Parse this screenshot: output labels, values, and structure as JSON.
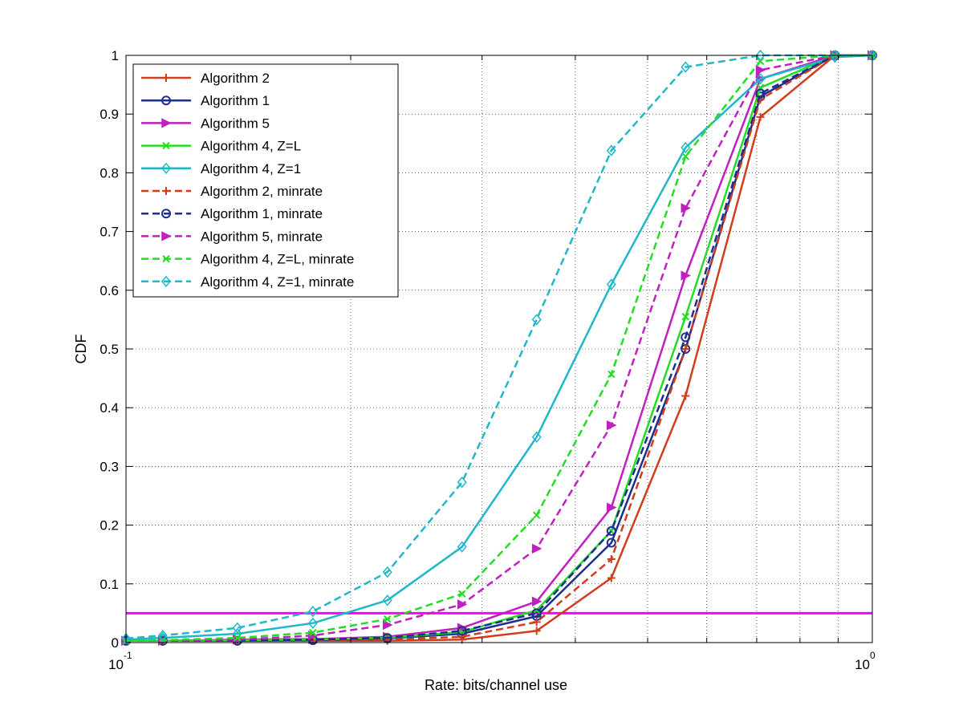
{
  "chart_data": {
    "type": "line",
    "title": "",
    "xlabel": "Rate: bits/channel use",
    "ylabel": "CDF",
    "xscale": "log",
    "xlim": [
      0.1,
      1.0
    ],
    "ylim": [
      0,
      1
    ],
    "grid": true,
    "legend_position": "top-left",
    "x_tick_labels": [
      {
        "base": "10",
        "exp": "-1",
        "value": 0.1
      },
      {
        "base": "10",
        "exp": "0",
        "value": 1.0
      }
    ],
    "y_ticks": [
      0,
      0.1,
      0.2,
      0.3,
      0.4,
      0.5,
      0.6,
      0.7,
      0.8,
      0.9,
      1
    ],
    "y_tick_labels": [
      "0",
      "0.1",
      "0.2",
      "0.3",
      "0.4",
      "0.5",
      "0.6",
      "0.7",
      "0.8",
      "0.9",
      "1"
    ],
    "x_minor_ticks": [
      0.2,
      0.3,
      0.4,
      0.5,
      0.6,
      0.7,
      0.8,
      0.9
    ],
    "reference_line": {
      "y": 0.05,
      "color": "#ff00ff"
    },
    "series": [
      {
        "name": "Algorithm 2",
        "color": "#d23c1a",
        "dash": false,
        "marker": "plus",
        "x": [
          0.1,
          0.112,
          0.141,
          0.178,
          0.224,
          0.282,
          0.355,
          0.447,
          0.562,
          0.708,
          0.891,
          1.0
        ],
        "y": [
          0.003,
          0.003,
          0.003,
          0.003,
          0.003,
          0.005,
          0.02,
          0.11,
          0.42,
          0.895,
          1.0,
          1.0
        ]
      },
      {
        "name": "Algorithm 1",
        "color": "#1c2f8c",
        "dash": false,
        "marker": "circle",
        "x": [
          0.1,
          0.112,
          0.141,
          0.178,
          0.224,
          0.282,
          0.355,
          0.447,
          0.562,
          0.708,
          0.891,
          1.0
        ],
        "y": [
          0.003,
          0.003,
          0.003,
          0.004,
          0.007,
          0.015,
          0.045,
          0.17,
          0.5,
          0.93,
          1.0,
          1.0
        ]
      },
      {
        "name": "Algorithm 5",
        "color": "#c020c0",
        "dash": false,
        "marker": "triangle-right",
        "x": [
          0.1,
          0.112,
          0.141,
          0.178,
          0.224,
          0.282,
          0.355,
          0.447,
          0.562,
          0.708,
          0.891,
          1.0
        ],
        "y": [
          0.003,
          0.003,
          0.005,
          0.006,
          0.01,
          0.025,
          0.07,
          0.23,
          0.625,
          0.96,
          1.0,
          1.0
        ]
      },
      {
        "name": "Algorithm 4, Z=L",
        "color": "#22dd22",
        "dash": false,
        "marker": "x",
        "x": [
          0.1,
          0.112,
          0.141,
          0.178,
          0.224,
          0.282,
          0.355,
          0.447,
          0.562,
          0.708,
          0.891,
          1.0
        ],
        "y": [
          0.003,
          0.003,
          0.004,
          0.005,
          0.008,
          0.018,
          0.055,
          0.19,
          0.555,
          0.945,
          1.0,
          1.0
        ]
      },
      {
        "name": "Algorithm 4, Z=1",
        "color": "#1eb8c8",
        "dash": false,
        "marker": "diamond",
        "x": [
          0.1,
          0.112,
          0.141,
          0.178,
          0.224,
          0.282,
          0.355,
          0.447,
          0.562,
          0.708,
          0.891,
          1.0
        ],
        "y": [
          0.005,
          0.008,
          0.015,
          0.033,
          0.072,
          0.163,
          0.35,
          0.61,
          0.843,
          0.96,
          0.997,
          1.0
        ]
      },
      {
        "name": "Algorithm 2, minrate",
        "color": "#d23c1a",
        "dash": true,
        "marker": "plus",
        "x": [
          0.1,
          0.112,
          0.141,
          0.178,
          0.224,
          0.282,
          0.355,
          0.447,
          0.562,
          0.708,
          0.891,
          1.0
        ],
        "y": [
          0.003,
          0.003,
          0.003,
          0.003,
          0.005,
          0.01,
          0.035,
          0.142,
          0.5,
          0.925,
          1.0,
          1.0
        ]
      },
      {
        "name": "Algorithm 1, minrate",
        "color": "#1c2f8c",
        "dash": true,
        "marker": "circle",
        "x": [
          0.1,
          0.112,
          0.141,
          0.178,
          0.224,
          0.282,
          0.355,
          0.447,
          0.562,
          0.708,
          0.891,
          1.0
        ],
        "y": [
          0.003,
          0.003,
          0.003,
          0.005,
          0.008,
          0.02,
          0.05,
          0.19,
          0.52,
          0.935,
          1.0,
          1.0
        ]
      },
      {
        "name": "Algorithm 5, minrate",
        "color": "#c020c0",
        "dash": true,
        "marker": "triangle-right",
        "x": [
          0.1,
          0.112,
          0.141,
          0.178,
          0.224,
          0.282,
          0.355,
          0.447,
          0.562,
          0.708,
          0.891,
          1.0
        ],
        "y": [
          0.003,
          0.003,
          0.005,
          0.012,
          0.03,
          0.065,
          0.16,
          0.37,
          0.74,
          0.975,
          1.0,
          1.0
        ]
      },
      {
        "name": "Algorithm 4, Z=L, minrate",
        "color": "#22dd22",
        "dash": true,
        "marker": "x",
        "x": [
          0.1,
          0.112,
          0.141,
          0.178,
          0.224,
          0.282,
          0.355,
          0.447,
          0.562,
          0.708,
          0.891,
          1.0
        ],
        "y": [
          0.003,
          0.004,
          0.008,
          0.017,
          0.04,
          0.083,
          0.217,
          0.457,
          0.828,
          0.99,
          1.0,
          1.0
        ]
      },
      {
        "name": "Algorithm 4, Z=1, minrate",
        "color": "#1eb8c8",
        "dash": true,
        "marker": "diamond",
        "x": [
          0.1,
          0.112,
          0.141,
          0.178,
          0.224,
          0.282,
          0.355,
          0.447,
          0.562,
          0.708,
          0.891,
          1.0
        ],
        "y": [
          0.007,
          0.012,
          0.025,
          0.053,
          0.12,
          0.273,
          0.55,
          0.838,
          0.98,
          1.0,
          1.0,
          1.0
        ]
      }
    ]
  }
}
